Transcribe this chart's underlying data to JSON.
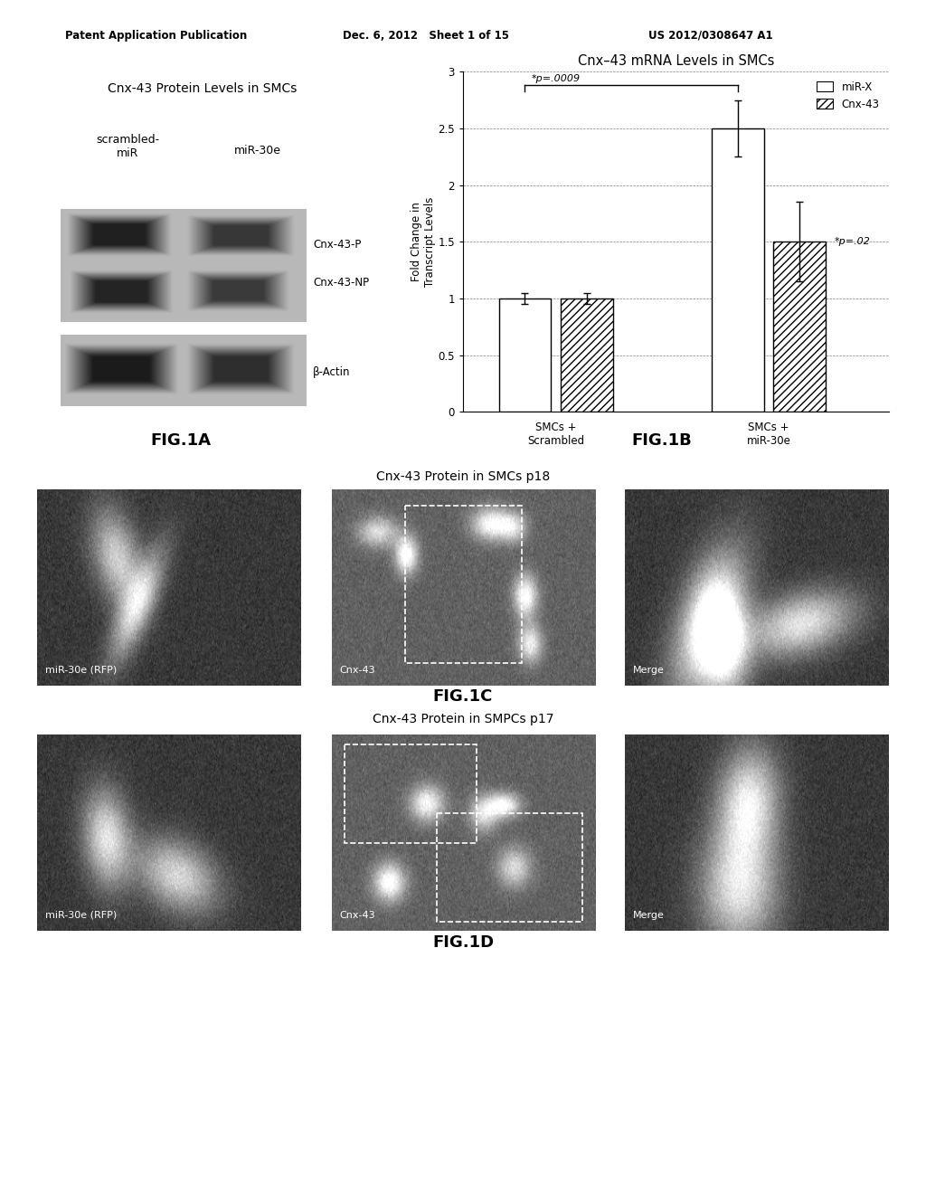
{
  "header_left": "Patent Application Publication",
  "header_mid": "Dec. 6, 2012   Sheet 1 of 15",
  "header_right": "US 2012/0308647 A1",
  "fig1a_title": "Cnx-43 Protein Levels in SMCs",
  "fig1a_label1": "scrambled-\nmiR",
  "fig1a_label2": "miR-30e",
  "fig1a_band1_label": "Cnx-43-P",
  "fig1a_band2_label": "Cnx-43-NP",
  "fig1a_band3_label": "β-Actin",
  "fig1a_caption": "FIG.1A",
  "fig1b_title": "Cnx–43 mRNA Levels in SMCs",
  "fig1b_ylabel": "Fold Change in\nTranscript Levels",
  "fig1b_yticks": [
    0,
    0.5,
    1,
    1.5,
    2,
    2.5,
    3
  ],
  "fig1b_xlabel1": "SMCs +\nScrambled",
  "fig1b_xlabel2": "SMCs +\nmiR-30e",
  "fig1b_bar1_mirx": 1.0,
  "fig1b_bar1_cnx43": 1.0,
  "fig1b_bar2_mirx": 2.5,
  "fig1b_bar2_cnx43": 1.5,
  "fig1b_err1_mirx": 0.05,
  "fig1b_err1_cnx43": 0.05,
  "fig1b_err2_mirx": 0.25,
  "fig1b_err2_cnx43": 0.35,
  "fig1b_annot1": "*p=.0009",
  "fig1b_annot2": "*p=.02",
  "fig1b_legend1": "miR-X",
  "fig1b_legend2": "Cnx-43",
  "fig1b_caption": "FIG.1B",
  "fig1c_title": "Cnx-43 Protein in SMCs p18",
  "fig1c_label1": "miR-30e (RFP)",
  "fig1c_label2": "Cnx-43",
  "fig1c_label3": "Merge",
  "fig1c_caption": "FIG.1C",
  "fig1d_title": "Cnx-43 Protein in SMPCs p17",
  "fig1d_label1": "miR-30e (RFP)",
  "fig1d_label2": "Cnx-43",
  "fig1d_label3": "Merge",
  "fig1d_caption": "FIG.1D",
  "bg_color": "#ffffff"
}
